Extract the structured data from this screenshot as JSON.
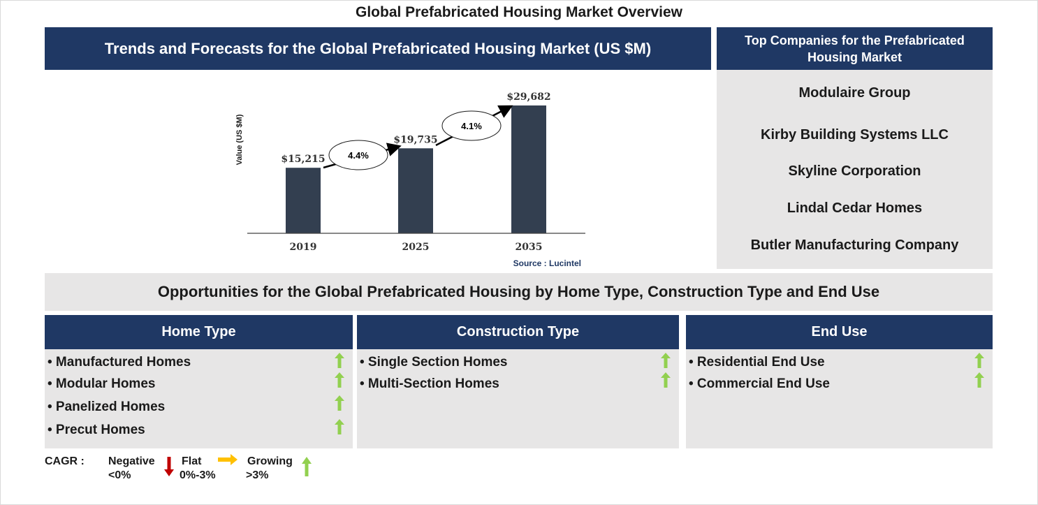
{
  "title": "Global Prefabricated Housing Market Overview",
  "chart_header": "Trends and Forecasts for the Global Prefabricated Housing Market (US $M)",
  "chart_data": {
    "type": "bar",
    "categories": [
      "2019",
      "2025",
      "2035"
    ],
    "values": [
      15215,
      19735,
      29682
    ],
    "value_labels": [
      "$15,215",
      "$19,735",
      "$29,682"
    ],
    "ylabel": "Value (US $M)",
    "ylim": [
      0,
      32000
    ],
    "grid": false,
    "annotations": [
      {
        "label": "4.4%",
        "from": "2019",
        "to": "2025"
      },
      {
        "label": "4.1%",
        "from": "2025",
        "to": "2035"
      }
    ],
    "source": "Source : Lucintel",
    "bar_color": "#333f50"
  },
  "companies": {
    "header": "Top Companies for the Prefabricated Housing Market",
    "items": [
      "Modulaire Group",
      "Kirby Building Systems LLC",
      "Skyline Corporation",
      "Lindal Cedar Homes",
      "Butler Manufacturing Company"
    ]
  },
  "opportunities_title": "Opportunities for the Global Prefabricated Housing by Home Type, Construction Type and End Use",
  "segments": [
    {
      "header": "Home Type",
      "items": [
        "• Manufactured Homes",
        "• Modular Homes",
        "• Panelized Homes",
        "• Precut Homes"
      ],
      "trend": [
        "growing",
        "growing",
        "growing",
        "growing"
      ]
    },
    {
      "header": "Construction Type",
      "items": [
        "• Single Section Homes",
        "• Multi-Section Homes"
      ],
      "trend": [
        "growing",
        "growing"
      ]
    },
    {
      "header": "End Use",
      "items": [
        "• Residential End Use",
        "• Commercial End Use"
      ],
      "trend": [
        "growing",
        "growing"
      ]
    }
  ],
  "legend": {
    "cagr_label": "CAGR :",
    "negative": {
      "label": "Negative",
      "range": "<0%"
    },
    "flat": {
      "label": "Flat",
      "range": "0%-3%"
    },
    "growing": {
      "label": "Growing",
      "range": ">3%"
    }
  },
  "colors": {
    "navy": "#1f3864",
    "panel_grey": "#e7e6e6",
    "arrow_green": "#92d050",
    "arrow_red": "#c00000",
    "arrow_yellow": "#ffc000"
  }
}
